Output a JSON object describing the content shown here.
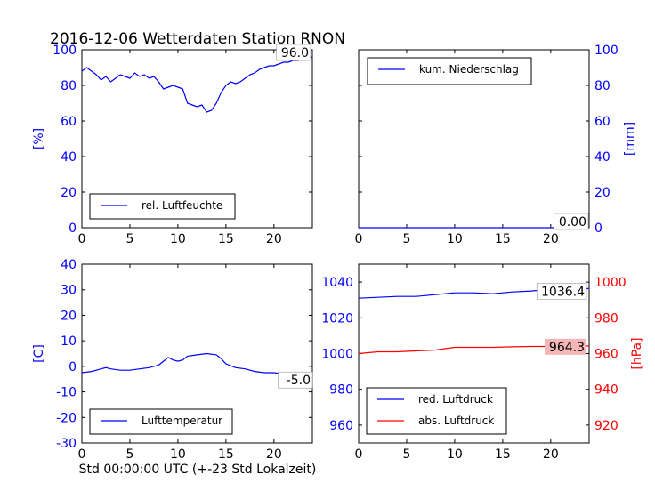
{
  "title": "2016-12-06 Wetterdaten Station RNON",
  "xlabel": "Std 00:00:00 UTC (+-23 Std Lokalzeit)",
  "colors": {
    "blue": "#0000ff",
    "red": "#ff0000",
    "axis": "#000000",
    "bg": "#ffffff"
  },
  "chart_data": [
    {
      "type": "line",
      "panel": "top-left",
      "ylabel": "[%]",
      "ylabel_color": "#0000ff",
      "xlim": [
        0,
        24
      ],
      "ylim": [
        0,
        100
      ],
      "xticks": [
        0,
        5,
        10,
        15,
        20
      ],
      "yticks": [
        0,
        20,
        40,
        60,
        80,
        100
      ],
      "legend_position": "lower-left",
      "series": [
        {
          "name": "rel. Luftfeuchte",
          "color": "#0000ff",
          "x": [
            0,
            0.5,
            1,
            1.5,
            2,
            2.5,
            3,
            3.5,
            4,
            4.5,
            5,
            5.5,
            6,
            6.5,
            7,
            7.5,
            8,
            8.5,
            9,
            9.5,
            10,
            10.5,
            11,
            11.5,
            12,
            12.5,
            13,
            13.5,
            14,
            14.5,
            15,
            15.5,
            16,
            16.5,
            17,
            17.5,
            18,
            18.5,
            19,
            19.5,
            20,
            20.5,
            21,
            21.5,
            22,
            22.5,
            23,
            23.5,
            24
          ],
          "y": [
            88,
            90,
            88,
            86,
            83,
            85,
            82,
            84,
            86,
            85,
            84,
            87,
            85,
            86,
            84,
            85,
            82,
            78,
            79,
            80,
            79,
            78,
            70,
            69,
            68,
            69,
            65,
            66,
            70,
            76,
            80,
            82,
            81,
            82,
            84,
            86,
            87,
            89,
            90,
            91,
            91,
            92,
            93,
            93,
            94,
            94,
            95,
            95,
            96
          ]
        }
      ],
      "annotation": "96.0"
    },
    {
      "type": "line",
      "panel": "top-right",
      "ylabel": "[mm]",
      "ylabel_color": "#0000ff",
      "xlim": [
        0,
        24
      ],
      "ylim": [
        0,
        100
      ],
      "xticks": [
        0,
        5,
        10,
        15,
        20
      ],
      "yticks": [
        0,
        20,
        40,
        60,
        80,
        100
      ],
      "legend_position": "upper-left",
      "series": [
        {
          "name": "kum. Niederschlag",
          "color": "#0000ff",
          "x": [
            0,
            24
          ],
          "y": [
            0,
            0
          ]
        }
      ],
      "annotation": "0.00"
    },
    {
      "type": "line",
      "panel": "bottom-left",
      "ylabel": "[C]",
      "ylabel_color": "#0000ff",
      "xlim": [
        0,
        24
      ],
      "ylim": [
        -30,
        40
      ],
      "xticks": [
        0,
        5,
        10,
        15,
        20
      ],
      "yticks": [
        -30,
        -20,
        -10,
        0,
        10,
        20,
        30,
        40
      ],
      "legend_position": "lower-left",
      "series": [
        {
          "name": "Lufttemperatur",
          "color": "#0000ff",
          "x": [
            0,
            1,
            2,
            2.5,
            3,
            4,
            5,
            6,
            7,
            8,
            8.5,
            9,
            9.5,
            10,
            10.5,
            11,
            12,
            13,
            14,
            14.5,
            15,
            16,
            17,
            18,
            19,
            20,
            21,
            22,
            23,
            24
          ],
          "y": [
            -2.5,
            -2,
            -1,
            -0.5,
            -1,
            -1.5,
            -1.5,
            -1,
            -0.5,
            0.5,
            2,
            3.5,
            2.5,
            2,
            2.5,
            4,
            4.5,
            5,
            4.5,
            3,
            1,
            -0.5,
            -1,
            -2,
            -2.5,
            -2.5,
            -3,
            -4,
            -4.5,
            -5
          ]
        }
      ],
      "annotation": "-5.0"
    },
    {
      "type": "line",
      "panel": "bottom-right",
      "ylabel": "[hPa]",
      "ylabel_color": "#ff0000",
      "xlim": [
        0,
        24
      ],
      "ylim": [
        950,
        1050
      ],
      "ylim_right": [
        910,
        1010
      ],
      "xticks": [
        0,
        5,
        10,
        15,
        20
      ],
      "yticks": [
        960,
        980,
        1000,
        1020,
        1040
      ],
      "yticks_right": [
        920,
        940,
        960,
        980,
        1000
      ],
      "legend_position": "lower-left",
      "series": [
        {
          "name": "red. Luftdruck",
          "color": "#0000ff",
          "axis": "left",
          "x": [
            0,
            2,
            4,
            6,
            8,
            10,
            12,
            14,
            16,
            18,
            20,
            22,
            24
          ],
          "y": [
            1031,
            1031.5,
            1032,
            1032,
            1033,
            1034,
            1034,
            1033.5,
            1034.5,
            1035,
            1036,
            1036.2,
            1036.4
          ]
        },
        {
          "name": "abs. Luftdruck",
          "color": "#ff0000",
          "axis": "right",
          "x": [
            0,
            2,
            4,
            6,
            8,
            10,
            12,
            14,
            16,
            18,
            20,
            22,
            24
          ],
          "y": [
            960,
            961,
            961,
            961.5,
            962,
            963.5,
            963.5,
            963.5,
            963.8,
            964,
            964,
            964.2,
            964.3
          ]
        }
      ],
      "annotation": "1036.4",
      "annotation2": "964.3"
    }
  ]
}
